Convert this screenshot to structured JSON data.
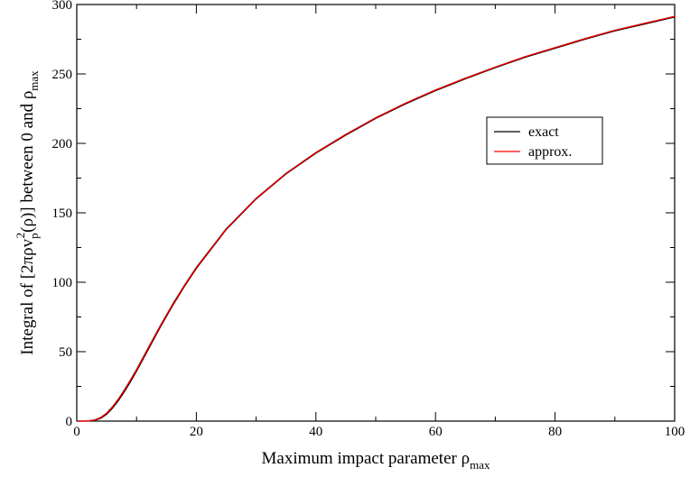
{
  "chart_data": {
    "type": "line",
    "title": "",
    "xlabel": {
      "main": "Maximum impact parameter ρ",
      "sub": "max"
    },
    "ylabel": {
      "part1": "Integral of [2πρv",
      "sub1": "p",
      "sup1": "2",
      "part2": "(ρ)] between 0 and ρ",
      "sub2": "max"
    },
    "xlim": [
      0,
      100
    ],
    "ylim": [
      0,
      300
    ],
    "xticks": [
      0,
      20,
      40,
      60,
      80,
      100
    ],
    "yticks": [
      0,
      50,
      100,
      150,
      200,
      250,
      300
    ],
    "grid": false,
    "legend_position": "upper-right",
    "series": [
      {
        "name": "exact",
        "color": "#000000",
        "x": [
          0,
          1,
          2,
          3,
          4,
          5,
          6,
          7,
          8,
          9,
          10,
          12,
          14,
          16,
          18,
          20,
          25,
          30,
          35,
          40,
          45,
          50,
          55,
          60,
          65,
          70,
          75,
          80,
          85,
          90,
          95,
          100
        ],
        "y": [
          0,
          0,
          0.1,
          0.6,
          2,
          5,
          9.5,
          15,
          21.5,
          28.5,
          36,
          52,
          68,
          83,
          97,
          110,
          138,
          160,
          178,
          193,
          206,
          218,
          228.5,
          238,
          246.5,
          254.5,
          262,
          268.5,
          275,
          281,
          286,
          291
        ]
      },
      {
        "name": "approx.",
        "color": "#ff0000",
        "x": [
          0,
          1,
          2,
          3,
          4,
          5,
          6,
          7,
          8,
          9,
          10,
          12,
          14,
          16,
          18,
          20,
          25,
          30,
          35,
          40,
          45,
          50,
          55,
          60,
          65,
          70,
          75,
          80,
          85,
          90,
          95,
          100
        ],
        "y": [
          0,
          0,
          0.2,
          0.9,
          2.6,
          5.8,
          10.5,
          16.2,
          22.8,
          29.8,
          37.2,
          53.2,
          69,
          84,
          97.8,
          110.8,
          138.6,
          160.5,
          178.5,
          193.5,
          206.5,
          218.5,
          229,
          238.5,
          247,
          255,
          262.5,
          269,
          275.5,
          281.5,
          286.5,
          291.5
        ]
      }
    ]
  }
}
